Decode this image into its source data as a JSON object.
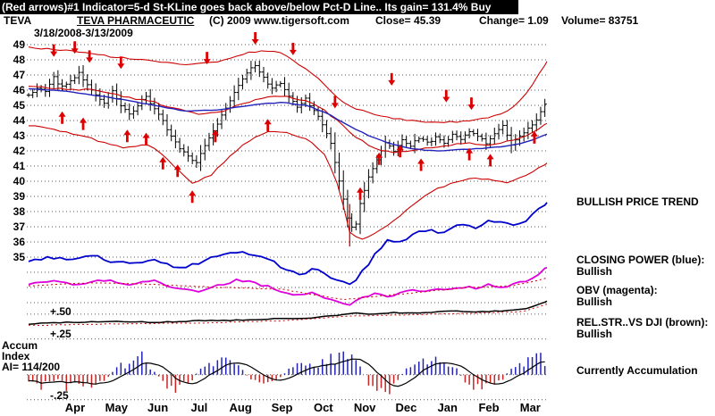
{
  "title_bar": {
    "text": "(Red arrows)#1 Indicator=5-d St-KLine goes back above/below Pct-D Line.. Its gain= 131.4% Buy"
  },
  "header": {
    "symbol": "TEVA",
    "name": "TEVA PHARMACEUTIC",
    "copyright": "(C) 2009 www.tigersoft.com",
    "close_label": "Close=  45.39",
    "change_label": "Change= 1.09",
    "volume_label": "Volume= 83751",
    "date_range": "3/18/2008-3/13/2009"
  },
  "right_panel": {
    "trend": "BULLISH PRICE TREND",
    "closing_power_label": "CLOSING POWER (blue):",
    "closing_power_status": "Bullish",
    "obv_label": "OBV (magenta):",
    "obv_status": "Bullish",
    "rel_str_label": "REL.STR..VS DJI (brown):",
    "rel_str_status": "Bullish",
    "accumulation_status": "Currently Accumulation"
  },
  "left_labels": {
    "plus50": "+.50",
    "plus25": "+.25",
    "accum": "Accum",
    "index": "Index",
    "ai": "AI= 114/200",
    "minus25": "-.25"
  },
  "chart_data": {
    "type": "ohlc-bar+indicator-lines+histogram",
    "title": "TEVA PHARMACEUTIC 3/18/2008-3/13/2009",
    "close": 45.39,
    "change": 1.09,
    "volume": 83751,
    "accumulation_index": "114/200",
    "ylim": [
      34.5,
      49.5
    ],
    "y_ticks": [
      49,
      48,
      47,
      46,
      45,
      44,
      43,
      42,
      41,
      40,
      39,
      38,
      37,
      36,
      35
    ],
    "aux_gridlines": [
      34,
      33,
      32,
      31.24,
      29.6,
      27.25,
      25.6
    ],
    "hist_baseline": 27.25,
    "months": [
      "Apr",
      "May",
      "Jun",
      "Jul",
      "Aug",
      "Sep",
      "Oct",
      "Nov",
      "Dec",
      "Jan",
      "Feb",
      "Mar"
    ],
    "days_total": 248,
    "price_close_anchors": [
      [
        0,
        45.6
      ],
      [
        4,
        46.2
      ],
      [
        8,
        46.0
      ],
      [
        12,
        46.8
      ],
      [
        16,
        46.2
      ],
      [
        20,
        46.6
      ],
      [
        24,
        47.1
      ],
      [
        28,
        46.4
      ],
      [
        32,
        45.7
      ],
      [
        36,
        45.2
      ],
      [
        40,
        45.9
      ],
      [
        44,
        45.0
      ],
      [
        48,
        44.4
      ],
      [
        52,
        45.0
      ],
      [
        56,
        45.6
      ],
      [
        60,
        44.8
      ],
      [
        64,
        43.9
      ],
      [
        68,
        43.0
      ],
      [
        72,
        42.2
      ],
      [
        76,
        41.6
      ],
      [
        80,
        41.2
      ],
      [
        84,
        42.4
      ],
      [
        88,
        43.4
      ],
      [
        92,
        44.3
      ],
      [
        96,
        45.2
      ],
      [
        100,
        46.3
      ],
      [
        104,
        47.2
      ],
      [
        108,
        47.6
      ],
      [
        112,
        46.8
      ],
      [
        116,
        46.1
      ],
      [
        120,
        46.5
      ],
      [
        124,
        45.7
      ],
      [
        128,
        44.8
      ],
      [
        132,
        45.4
      ],
      [
        136,
        44.6
      ],
      [
        140,
        43.8
      ],
      [
        144,
        42.6
      ],
      [
        148,
        40.0
      ],
      [
        152,
        37.6
      ],
      [
        155,
        36.6
      ],
      [
        158,
        38.6
      ],
      [
        162,
        40.2
      ],
      [
        166,
        41.4
      ],
      [
        170,
        42.6
      ],
      [
        174,
        42.0
      ],
      [
        178,
        42.8
      ],
      [
        182,
        42.3
      ],
      [
        186,
        42.9
      ],
      [
        190,
        42.5
      ],
      [
        194,
        42.9
      ],
      [
        198,
        42.5
      ],
      [
        202,
        43.1
      ],
      [
        206,
        42.7
      ],
      [
        210,
        43.3
      ],
      [
        214,
        42.9
      ],
      [
        218,
        42.5
      ],
      [
        222,
        43.2
      ],
      [
        226,
        43.6
      ],
      [
        230,
        42.4
      ],
      [
        234,
        42.9
      ],
      [
        238,
        43.4
      ],
      [
        242,
        44.1
      ],
      [
        245,
        44.8
      ],
      [
        247,
        45.4
      ]
    ],
    "upper_band_anchors": [
      [
        0,
        48.8
      ],
      [
        20,
        48.6
      ],
      [
        40,
        48.2
      ],
      [
        60,
        47.9
      ],
      [
        75,
        47.7
      ],
      [
        90,
        47.9
      ],
      [
        105,
        48.5
      ],
      [
        118,
        48.6
      ],
      [
        128,
        47.8
      ],
      [
        138,
        46.8
      ],
      [
        146,
        45.6
      ],
      [
        154,
        44.9
      ],
      [
        164,
        44.4
      ],
      [
        176,
        44.1
      ],
      [
        190,
        43.9
      ],
      [
        205,
        43.9
      ],
      [
        215,
        44.1
      ],
      [
        225,
        44.4
      ],
      [
        232,
        45.0
      ],
      [
        238,
        45.9
      ],
      [
        243,
        47.0
      ],
      [
        247,
        47.9
      ]
    ],
    "mid_band_anchors": [
      [
        0,
        46.3
      ],
      [
        15,
        46.1
      ],
      [
        30,
        46.0
      ],
      [
        45,
        45.6
      ],
      [
        60,
        45.2
      ],
      [
        72,
        44.7
      ],
      [
        82,
        44.4
      ],
      [
        92,
        44.6
      ],
      [
        102,
        45.1
      ],
      [
        112,
        45.5
      ],
      [
        122,
        45.6
      ],
      [
        132,
        45.3
      ],
      [
        140,
        44.8
      ],
      [
        148,
        43.9
      ],
      [
        156,
        42.9
      ],
      [
        164,
        42.2
      ],
      [
        172,
        41.9
      ],
      [
        180,
        42.0
      ],
      [
        190,
        42.2
      ],
      [
        200,
        42.4
      ],
      [
        210,
        42.5
      ],
      [
        220,
        42.4
      ],
      [
        228,
        42.6
      ],
      [
        236,
        42.9
      ],
      [
        242,
        43.3
      ],
      [
        247,
        43.8
      ]
    ],
    "ma_blue_anchors": [
      [
        0,
        46.1
      ],
      [
        20,
        45.9
      ],
      [
        40,
        45.5
      ],
      [
        60,
        45.0
      ],
      [
        75,
        44.6
      ],
      [
        90,
        44.7
      ],
      [
        105,
        45.0
      ],
      [
        120,
        45.2
      ],
      [
        132,
        45.0
      ],
      [
        142,
        44.5
      ],
      [
        152,
        43.7
      ],
      [
        162,
        43.0
      ],
      [
        172,
        42.5
      ],
      [
        184,
        42.1
      ],
      [
        196,
        42.0
      ],
      [
        208,
        42.1
      ],
      [
        220,
        42.2
      ],
      [
        232,
        42.4
      ],
      [
        240,
        42.7
      ],
      [
        247,
        43.1
      ]
    ],
    "lower_band_anchors": [
      [
        0,
        43.7
      ],
      [
        15,
        43.3
      ],
      [
        30,
        42.8
      ],
      [
        45,
        42.2
      ],
      [
        58,
        42.4
      ],
      [
        68,
        41.2
      ],
      [
        78,
        39.9
      ],
      [
        86,
        40.3
      ],
      [
        94,
        41.4
      ],
      [
        104,
        42.6
      ],
      [
        114,
        43.3
      ],
      [
        124,
        43.2
      ],
      [
        134,
        42.7
      ],
      [
        142,
        41.6
      ],
      [
        148,
        39.5
      ],
      [
        153,
        36.6
      ],
      [
        158,
        36.1
      ],
      [
        164,
        36.5
      ],
      [
        172,
        37.2
      ],
      [
        180,
        38.1
      ],
      [
        190,
        39.2
      ],
      [
        200,
        39.8
      ],
      [
        210,
        40.2
      ],
      [
        220,
        40.1
      ],
      [
        228,
        39.9
      ],
      [
        236,
        40.3
      ],
      [
        242,
        40.8
      ],
      [
        247,
        41.2
      ]
    ],
    "closing_power_anchors": [
      [
        0,
        34.8
      ],
      [
        10,
        35.0
      ],
      [
        20,
        34.8
      ],
      [
        30,
        35.1
      ],
      [
        40,
        34.7
      ],
      [
        50,
        34.5
      ],
      [
        58,
        34.9
      ],
      [
        66,
        34.5
      ],
      [
        74,
        34.2
      ],
      [
        82,
        34.7
      ],
      [
        90,
        35.1
      ],
      [
        100,
        35.4
      ],
      [
        108,
        35.1
      ],
      [
        116,
        34.7
      ],
      [
        124,
        34.1
      ],
      [
        130,
        33.8
      ],
      [
        136,
        34.3
      ],
      [
        142,
        33.9
      ],
      [
        148,
        33.4
      ],
      [
        154,
        33.1
      ],
      [
        160,
        34.2
      ],
      [
        166,
        35.3
      ],
      [
        172,
        36.2
      ],
      [
        178,
        35.9
      ],
      [
        184,
        36.5
      ],
      [
        190,
        36.8
      ],
      [
        196,
        36.6
      ],
      [
        202,
        37.0
      ],
      [
        208,
        37.2
      ],
      [
        214,
        36.9
      ],
      [
        220,
        37.4
      ],
      [
        226,
        37.2
      ],
      [
        232,
        37.0
      ],
      [
        238,
        37.5
      ],
      [
        243,
        38.1
      ],
      [
        247,
        38.6
      ]
    ],
    "obv_anchors": [
      [
        0,
        33.2
      ],
      [
        12,
        33.4
      ],
      [
        24,
        33.2
      ],
      [
        36,
        33.5
      ],
      [
        48,
        33.2
      ],
      [
        60,
        33.4
      ],
      [
        70,
        33.0
      ],
      [
        80,
        32.7
      ],
      [
        90,
        33.1
      ],
      [
        100,
        33.5
      ],
      [
        110,
        33.2
      ],
      [
        120,
        32.8
      ],
      [
        130,
        32.4
      ],
      [
        136,
        32.7
      ],
      [
        142,
        32.3
      ],
      [
        148,
        32.0
      ],
      [
        154,
        31.9
      ],
      [
        160,
        32.4
      ],
      [
        166,
        32.6
      ],
      [
        172,
        32.4
      ],
      [
        178,
        32.7
      ],
      [
        184,
        32.9
      ],
      [
        190,
        32.7
      ],
      [
        196,
        33.0
      ],
      [
        202,
        32.8
      ],
      [
        208,
        33.1
      ],
      [
        214,
        32.9
      ],
      [
        220,
        33.2
      ],
      [
        226,
        33.0
      ],
      [
        232,
        33.2
      ],
      [
        238,
        33.5
      ],
      [
        243,
        33.9
      ],
      [
        247,
        34.3
      ]
    ],
    "obv_ma_anchors": [
      [
        0,
        33.1
      ],
      [
        30,
        33.3
      ],
      [
        60,
        33.2
      ],
      [
        90,
        33.0
      ],
      [
        120,
        32.9
      ],
      [
        150,
        32.2
      ],
      [
        180,
        32.6
      ],
      [
        210,
        33.0
      ],
      [
        230,
        33.1
      ],
      [
        247,
        33.6
      ]
    ],
    "rel_str_anchors": [
      [
        0,
        30.6
      ],
      [
        20,
        30.7
      ],
      [
        40,
        30.75
      ],
      [
        60,
        30.7
      ],
      [
        80,
        30.8
      ],
      [
        100,
        30.85
      ],
      [
        120,
        30.95
      ],
      [
        135,
        31.0
      ],
      [
        145,
        31.15
      ],
      [
        155,
        31.3
      ],
      [
        165,
        31.25
      ],
      [
        175,
        31.35
      ],
      [
        185,
        31.3
      ],
      [
        195,
        31.4
      ],
      [
        205,
        31.45
      ],
      [
        215,
        31.4
      ],
      [
        225,
        31.45
      ],
      [
        232,
        31.5
      ],
      [
        238,
        31.6
      ],
      [
        243,
        31.9
      ],
      [
        247,
        32.1
      ]
    ],
    "rel_str_ma_anchors": [
      [
        0,
        30.5
      ],
      [
        40,
        30.6
      ],
      [
        80,
        30.65
      ],
      [
        120,
        30.8
      ],
      [
        150,
        31.1
      ],
      [
        180,
        31.2
      ],
      [
        210,
        31.3
      ],
      [
        235,
        31.4
      ],
      [
        247,
        31.9
      ]
    ],
    "accum_anchors": [
      [
        0,
        -0.25
      ],
      [
        6,
        -0.45
      ],
      [
        12,
        -0.2
      ],
      [
        18,
        -0.5
      ],
      [
        24,
        -0.35
      ],
      [
        30,
        -0.55
      ],
      [
        36,
        -0.25
      ],
      [
        42,
        0.3
      ],
      [
        48,
        0.55
      ],
      [
        54,
        0.85
      ],
      [
        58,
        0.4
      ],
      [
        64,
        -0.35
      ],
      [
        70,
        -0.65
      ],
      [
        76,
        -0.4
      ],
      [
        82,
        0.3
      ],
      [
        88,
        0.5
      ],
      [
        94,
        0.65
      ],
      [
        100,
        0.35
      ],
      [
        106,
        -0.25
      ],
      [
        112,
        -0.45
      ],
      [
        118,
        -0.3
      ],
      [
        124,
        0.25
      ],
      [
        130,
        0.45
      ],
      [
        136,
        0.3
      ],
      [
        142,
        0.6
      ],
      [
        148,
        0.9
      ],
      [
        154,
        0.75
      ],
      [
        158,
        0.4
      ],
      [
        162,
        -0.4
      ],
      [
        168,
        -0.75
      ],
      [
        174,
        -0.5
      ],
      [
        180,
        0.3
      ],
      [
        186,
        0.6
      ],
      [
        192,
        0.7
      ],
      [
        198,
        0.4
      ],
      [
        204,
        0.3
      ],
      [
        208,
        -0.4
      ],
      [
        214,
        -0.6
      ],
      [
        220,
        -0.45
      ],
      [
        226,
        -0.3
      ],
      [
        230,
        0.4
      ],
      [
        236,
        0.6
      ],
      [
        241,
        0.8
      ],
      [
        247,
        0.6
      ]
    ],
    "spike": {
      "day": 153,
      "high": 38.5,
      "low": 35.7
    },
    "signals": {
      "down": [
        [
          12,
          48.2
        ],
        [
          22,
          48.4
        ],
        [
          29,
          47.8
        ],
        [
          44,
          47.4
        ],
        [
          85,
          47.7
        ],
        [
          108,
          49.0
        ],
        [
          126,
          48.3
        ],
        [
          146,
          44.8
        ],
        [
          173,
          46.3
        ],
        [
          199,
          45.2
        ],
        [
          211,
          44.7
        ]
      ],
      "up": [
        [
          16,
          44.6
        ],
        [
          26,
          44.2
        ],
        [
          47,
          43.4
        ],
        [
          56,
          43.2
        ],
        [
          64,
          41.6
        ],
        [
          71,
          41.1
        ],
        [
          78,
          39.4
        ],
        [
          89,
          43.4
        ],
        [
          114,
          44.1
        ],
        [
          158,
          39.6
        ],
        [
          167,
          41.9
        ],
        [
          177,
          42.4
        ],
        [
          187,
          41.5
        ],
        [
          210,
          42.2
        ],
        [
          220,
          41.8
        ],
        [
          241,
          43.3
        ]
      ]
    },
    "colors": {
      "price": "#000000",
      "band": "#cc0000",
      "ma_blue": "#2222bb",
      "closing_power": "#0000cc",
      "obv": "#dd00dd",
      "rel_str": "#000000",
      "accum_pos": "#2222bb",
      "accum_neg": "#cc2222",
      "signal": "#dd0000"
    }
  }
}
